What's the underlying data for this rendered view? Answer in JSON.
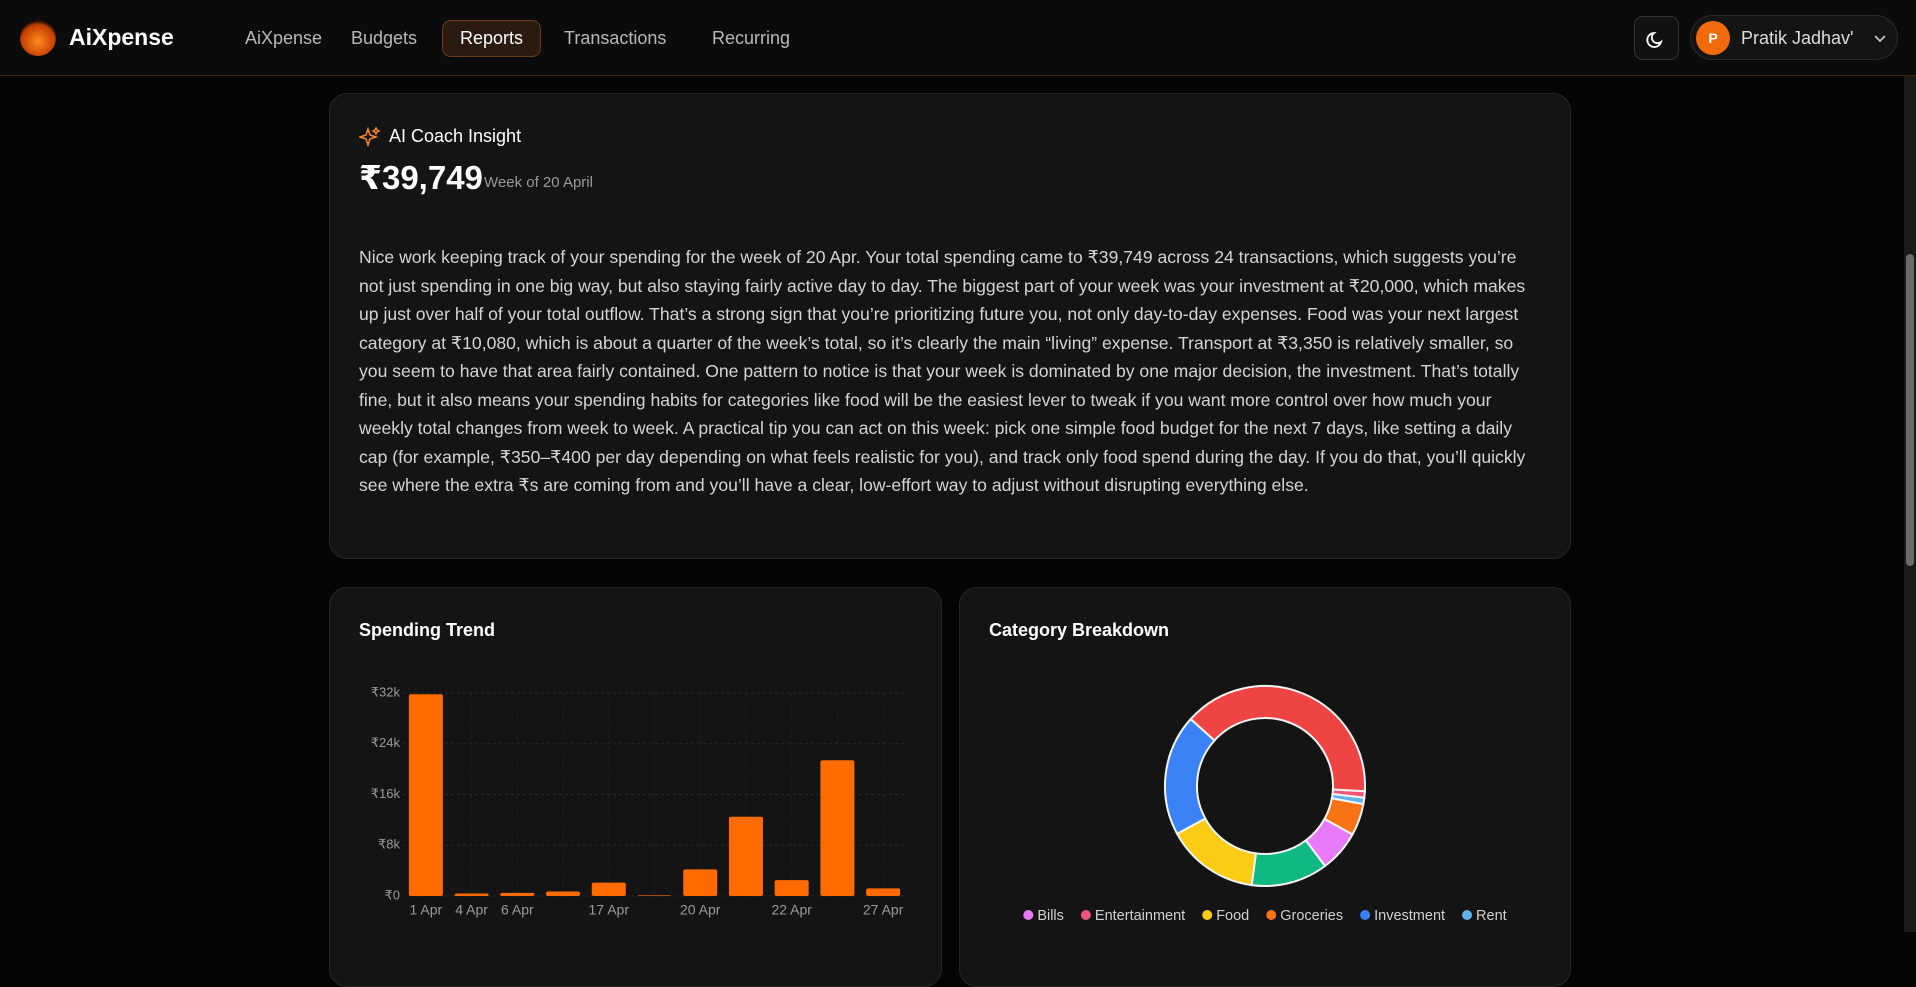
{
  "nav": {
    "brand": "AiXpense",
    "items": [
      "AiXpense",
      "Budgets",
      "Reports",
      "Transactions",
      "Recurring"
    ],
    "active": 2,
    "user": {
      "initial": "P",
      "name": "Pratik Jadhav'"
    }
  },
  "insight": {
    "title": "AI Coach Insight",
    "amount": "₹39,749",
    "period": "Week of 20 April",
    "text": "Nice work keeping track of your spending for the week of 20 Apr. Your total spending came to ₹39,749 across 24 transactions, which suggests you’re not just spending in one big way, but also staying fairly active day to day. The biggest part of your week was your investment at ₹20,000, which makes up just over half of your total outflow. That’s a strong sign that you’re prioritizing future you, not only day-to-day expenses. Food was your next largest category at ₹10,080, which is about a quarter of the week’s total, so it’s clearly the main “living” expense. Transport at ₹3,350 is relatively smaller, so you seem to have that area fairly contained. One pattern to notice is that your week is dominated by one major decision, the investment. That’s totally fine, but it also means your spending habits for categories like food will be the easiest lever to tweak if you want more control over how much your weekly total changes from week to week. A practical tip you can act on this week: pick one simple food budget for the next 7 days, like setting a daily cap (for example, ₹350–₹400 per day depending on what feels realistic for you), and track only food spend during the day. If you do that, you’ll quickly see where the extra ₹s are coming from and you’ll have a clear, low-effort way to adjust without disrupting everything else."
  },
  "chart_data": [
    {
      "type": "bar",
      "title": "Spending Trend",
      "categories": [
        "1 Apr",
        "4 Apr",
        "6 Apr",
        null,
        "17 Apr",
        null,
        "20 Apr",
        null,
        "22 Apr",
        null,
        "27 Apr"
      ],
      "values": [
        31800,
        400,
        500,
        700,
        2100,
        100,
        4200,
        12500,
        2500,
        21400,
        1200
      ],
      "color": "#ff6b00",
      "ylim": [
        0,
        32000
      ],
      "yticks": [
        {
          "value": 0,
          "label": "₹0"
        },
        {
          "value": 8000,
          "label": "₹8k"
        },
        {
          "value": 16000,
          "label": "₹16k"
        },
        {
          "value": 24000,
          "label": "₹24k"
        },
        {
          "value": 32000,
          "label": "₹32k"
        }
      ],
      "grid": true
    },
    {
      "type": "donut",
      "title": "Category Breakdown",
      "categories": [
        "Bills",
        "Entertainment",
        "Food",
        "Groceries",
        "Investment",
        "Rent",
        null,
        null
      ],
      "values": [
        6.5,
        1,
        14.5,
        5,
        19,
        1,
        38,
        12
      ],
      "colors": [
        "#e879f9",
        "#f0567a",
        "#facc15",
        "#f97316",
        "#3b82f6",
        "#5fb2ea",
        "#ef4444",
        "#10b981"
      ]
    }
  ]
}
